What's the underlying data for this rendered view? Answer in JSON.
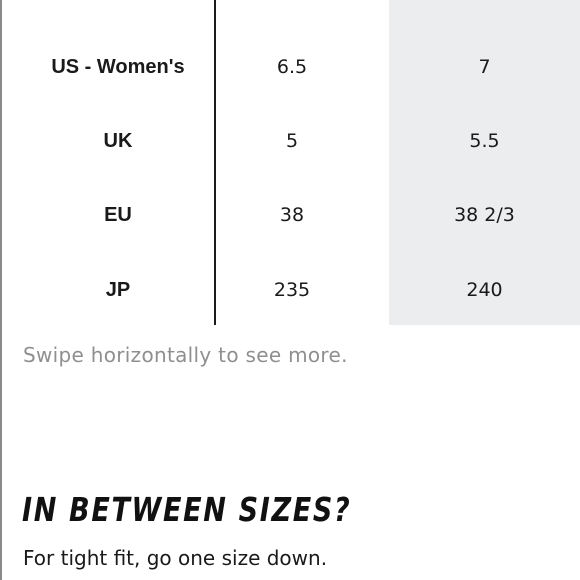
{
  "size_table": {
    "rows": [
      {
        "label": "US - Women's",
        "values": [
          "6.5",
          "7"
        ]
      },
      {
        "label": "UK",
        "values": [
          "5",
          "5.5"
        ]
      },
      {
        "label": "EU",
        "values": [
          "38",
          "38 2/3"
        ]
      },
      {
        "label": "JP",
        "values": [
          "235",
          "240"
        ]
      }
    ]
  },
  "swipe_hint": "Swipe horizontally to see more.",
  "in_between": {
    "heading": "IN BETWEEN SIZES?",
    "note": "For tight fit, go one size down."
  },
  "colors": {
    "highlight_column": "#ebedee",
    "hint_text": "#8f8f8f"
  }
}
